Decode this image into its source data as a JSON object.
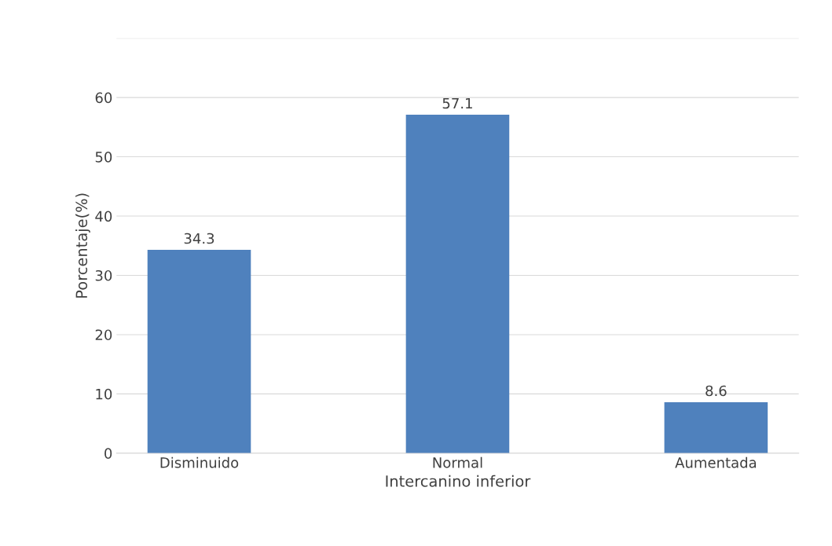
{
  "chart_data": {
    "type": "bar",
    "xlabel": "Intercanino inferior",
    "ylabel": "Porcentaje(%)",
    "categories": [
      "Disminuido",
      "Normal",
      "Aumentada"
    ],
    "values": [
      34.3,
      57.1,
      8.6
    ],
    "color": "#4f81bd",
    "ylim": [
      0,
      70
    ],
    "yticks": [
      0,
      10,
      20,
      30,
      40,
      50,
      60,
      {
        "value": 70,
        "label": null
      }
    ],
    "grid": "y",
    "data_labels": true
  }
}
